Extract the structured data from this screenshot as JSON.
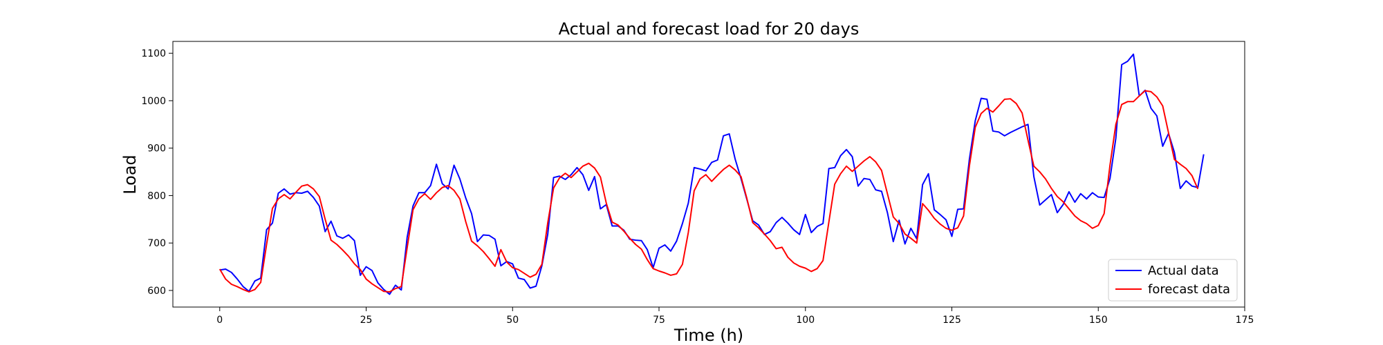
{
  "chart_data": {
    "type": "line",
    "title": "Actual and forecast load for 20 days",
    "xlabel": "Time (h)",
    "ylabel": "Load",
    "xlim": [
      -8,
      175
    ],
    "ylim": [
      565,
      1125
    ],
    "xticks": [
      0,
      25,
      50,
      75,
      100,
      125,
      150,
      175
    ],
    "yticks": [
      600,
      700,
      800,
      900,
      1000,
      1100
    ],
    "grid": false,
    "legend_position": "bottom-right",
    "series": [
      {
        "name": "Actual data",
        "color": "#0000ff",
        "values": [
          643,
          645,
          638,
          624,
          608,
          598,
          620,
          626,
          728,
          742,
          805,
          814,
          803,
          806,
          805,
          809,
          796,
          778,
          724,
          746,
          715,
          710,
          717,
          705,
          632,
          650,
          642,
          616,
          602,
          592,
          611,
          601,
          712,
          778,
          806,
          806,
          821,
          866,
          825,
          814,
          864,
          835,
          795,
          762,
          703,
          717,
          716,
          708,
          652,
          661,
          656,
          626,
          623,
          605,
          609,
          652,
          718,
          838,
          841,
          834,
          844,
          859,
          844,
          811,
          840,
          772,
          781,
          736,
          736,
          727,
          708,
          706,
          705,
          686,
          648,
          689,
          696,
          683,
          704,
          741,
          784,
          859,
          856,
          852,
          870,
          875,
          926,
          930,
          877,
          836,
          792,
          747,
          738,
          718,
          724,
          743,
          754,
          742,
          728,
          718,
          760,
          722,
          735,
          741,
          857,
          859,
          884,
          897,
          882,
          820,
          836,
          834,
          812,
          809,
          764,
          703,
          748,
          698,
          731,
          709,
          823,
          846,
          770,
          760,
          749,
          714,
          771,
          772,
          877,
          958,
          1005,
          1003,
          936,
          934,
          926,
          933,
          939,
          945,
          950,
          840,
          780,
          791,
          802,
          764,
          781,
          808,
          786,
          804,
          793,
          806,
          797,
          796,
          836,
          921,
          1076,
          1083,
          1098,
          1010,
          1022,
          984,
          968,
          904,
          931,
          891,
          815,
          831,
          820,
          817,
          887
        ]
      },
      {
        "name": "forecast data",
        "color": "#ff0000",
        "values": [
          645,
          624,
          613,
          608,
          602,
          597,
          602,
          617,
          697,
          773,
          793,
          802,
          793,
          807,
          820,
          823,
          814,
          798,
          750,
          706,
          697,
          685,
          672,
          656,
          644,
          624,
          614,
          606,
          598,
          597,
          604,
          608,
          690,
          770,
          793,
          804,
          792,
          806,
          817,
          821,
          811,
          793,
          745,
          704,
          694,
          682,
          667,
          651,
          686,
          660,
          648,
          644,
          636,
          628,
          634,
          655,
          742,
          816,
          837,
          847,
          838,
          850,
          862,
          868,
          858,
          839,
          784,
          744,
          738,
          725,
          710,
          697,
          687,
          665,
          646,
          641,
          637,
          632,
          635,
          655,
          722,
          810,
          835,
          844,
          830,
          843,
          855,
          864,
          854,
          840,
          794,
          743,
          732,
          719,
          705,
          688,
          691,
          670,
          658,
          651,
          647,
          640,
          646,
          663,
          744,
          824,
          846,
          862,
          851,
          862,
          873,
          882,
          871,
          853,
          804,
          755,
          741,
          719,
          710,
          700,
          783,
          769,
          752,
          740,
          731,
          727,
          732,
          757,
          863,
          944,
          973,
          984,
          976,
          989,
          1003,
          1004,
          994,
          974,
          917,
          862,
          850,
          835,
          815,
          798,
          787,
          772,
          757,
          747,
          741,
          731,
          737,
          762,
          864,
          950,
          992,
          998,
          998,
          1010,
          1021,
          1019,
          1008,
          989,
          932,
          876,
          866,
          857,
          842,
          814
        ]
      }
    ]
  }
}
